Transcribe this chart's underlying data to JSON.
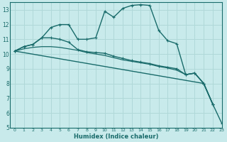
{
  "xlabel": "Humidex (Indice chaleur)",
  "xlim": [
    -0.5,
    23
  ],
  "ylim": [
    5,
    13.5
  ],
  "yticks": [
    5,
    6,
    7,
    8,
    9,
    10,
    11,
    12,
    13
  ],
  "xticks": [
    0,
    1,
    2,
    3,
    4,
    5,
    6,
    7,
    8,
    9,
    10,
    11,
    12,
    13,
    14,
    15,
    16,
    17,
    18,
    19,
    20,
    21,
    22,
    23
  ],
  "bg_color": "#c8eaea",
  "plot_bg": "#c8eaea",
  "grid_color": "#b0d8d8",
  "line_color": "#1a6b6b",
  "series": [
    {
      "x": [
        0,
        1,
        2,
        3,
        4,
        5,
        6,
        7,
        8,
        9,
        10,
        11,
        12,
        13,
        14,
        15,
        16,
        17,
        18,
        19,
        20,
        21,
        22
      ],
      "y": [
        10.2,
        10.5,
        10.65,
        11.1,
        11.8,
        12.0,
        12.0,
        11.0,
        11.0,
        11.1,
        12.9,
        12.5,
        13.1,
        13.3,
        13.35,
        13.3,
        11.6,
        10.9,
        10.7,
        8.6,
        8.7,
        8.0,
        6.6
      ],
      "marker": "+",
      "linewidth": 1.0
    },
    {
      "x": [
        0,
        1,
        2,
        3,
        4,
        5,
        6,
        7,
        8,
        9,
        10,
        11,
        12,
        13,
        14,
        15,
        16,
        17,
        18,
        19,
        20,
        21,
        22
      ],
      "y": [
        10.2,
        10.5,
        10.65,
        11.1,
        11.1,
        11.0,
        10.8,
        10.3,
        10.15,
        10.1,
        10.05,
        9.85,
        9.7,
        9.55,
        9.45,
        9.35,
        9.2,
        9.1,
        9.0,
        8.6,
        8.7,
        8.0,
        6.6
      ],
      "marker": "+",
      "linewidth": 1.0
    },
    {
      "x": [
        0,
        1,
        2,
        3,
        4,
        5,
        6,
        7,
        8,
        9,
        10,
        11,
        12,
        13,
        14,
        15,
        16,
        17,
        18,
        19,
        20,
        21,
        22
      ],
      "y": [
        10.2,
        10.35,
        10.45,
        10.5,
        10.5,
        10.45,
        10.35,
        10.25,
        10.1,
        10.0,
        9.9,
        9.75,
        9.6,
        9.5,
        9.4,
        9.3,
        9.15,
        9.05,
        8.9,
        8.6,
        8.7,
        8.0,
        6.6
      ],
      "marker": null,
      "linewidth": 0.9
    },
    {
      "x": [
        0,
        21,
        22,
        23
      ],
      "y": [
        10.2,
        8.0,
        6.6,
        5.3
      ],
      "marker": "+",
      "linewidth": 1.0
    }
  ]
}
